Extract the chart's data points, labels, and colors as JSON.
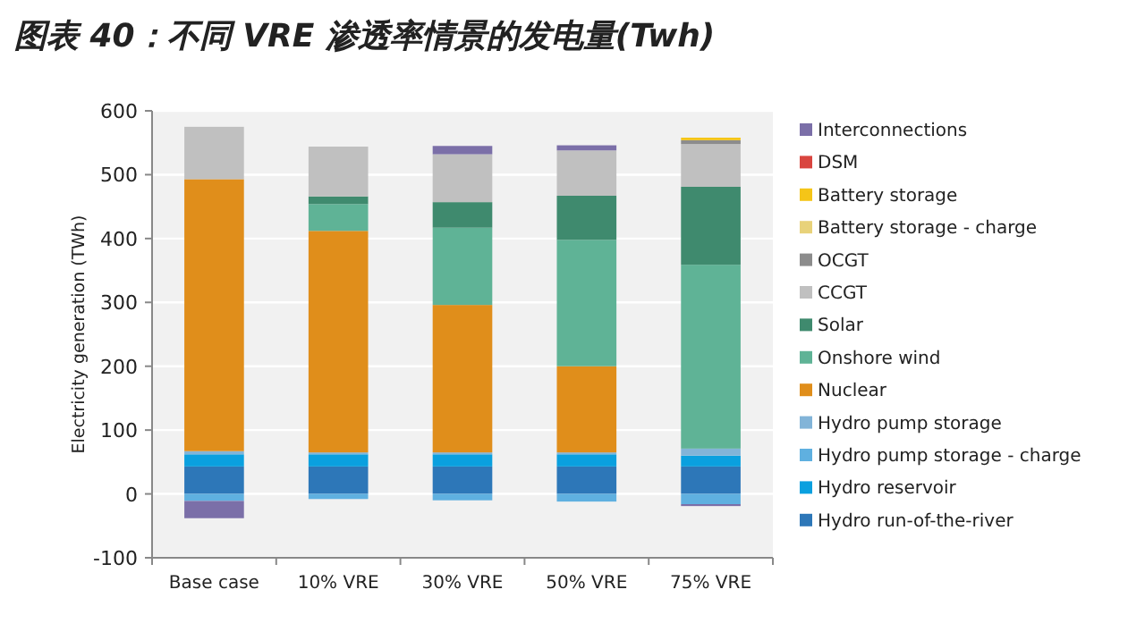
{
  "chart_data": {
    "type": "bar",
    "title": "图表 40：不同 VRE 渗透率情景的发电量(Twh)",
    "ylabel": "Electricity generation (TWh)",
    "stacked": true,
    "grid": "y",
    "legend": "right",
    "categories": [
      "Base case",
      "10% VRE",
      "30% VRE",
      "50% VRE",
      "75% VRE"
    ],
    "ylim": [
      -100,
      600
    ],
    "yticks": [
      -100,
      0,
      100,
      200,
      300,
      400,
      500,
      600
    ],
    "series": [
      {
        "name": "Hydro run-of-the-river",
        "color": "#2d77b8",
        "values": [
          43,
          43,
          43,
          43,
          43
        ]
      },
      {
        "name": "Hydro reservoir",
        "color": "#0aa0df",
        "values": [
          19,
          19,
          19,
          19,
          17
        ]
      },
      {
        "name": "Hydro pump storage - charge",
        "color": "#5fb0e0",
        "values": [
          -11,
          -8,
          -10,
          -12,
          -16
        ]
      },
      {
        "name": "Hydro pump storage",
        "color": "#82b4d8",
        "values": [
          5,
          3,
          3,
          3,
          11
        ]
      },
      {
        "name": "Nuclear",
        "color": "#e08e1b",
        "values": [
          426,
          347,
          231,
          135,
          0
        ]
      },
      {
        "name": "Onshore wind",
        "color": "#5fb396",
        "values": [
          0,
          42,
          121,
          198,
          288
        ]
      },
      {
        "name": "Solar",
        "color": "#3f8a6e",
        "values": [
          0,
          12,
          40,
          69,
          122
        ]
      },
      {
        "name": "CCGT",
        "color": "#c0c0c0",
        "values": [
          82,
          78,
          75,
          71,
          67
        ]
      },
      {
        "name": "OCGT",
        "color": "#8c8c8c",
        "values": [
          0,
          0,
          0,
          0,
          6
        ]
      },
      {
        "name": "Battery storage - charge",
        "color": "#e8d27a",
        "values": [
          0,
          0,
          0,
          0,
          0
        ]
      },
      {
        "name": "Battery storage",
        "color": "#f5c518",
        "values": [
          0,
          0,
          0,
          0,
          4
        ]
      },
      {
        "name": "DSM",
        "color": "#d9453f",
        "values": [
          0,
          0,
          0,
          0,
          0
        ]
      },
      {
        "name": "Interconnections",
        "color": "#7b6fa8",
        "values": [
          -27,
          0,
          13,
          8,
          -3
        ]
      }
    ]
  }
}
